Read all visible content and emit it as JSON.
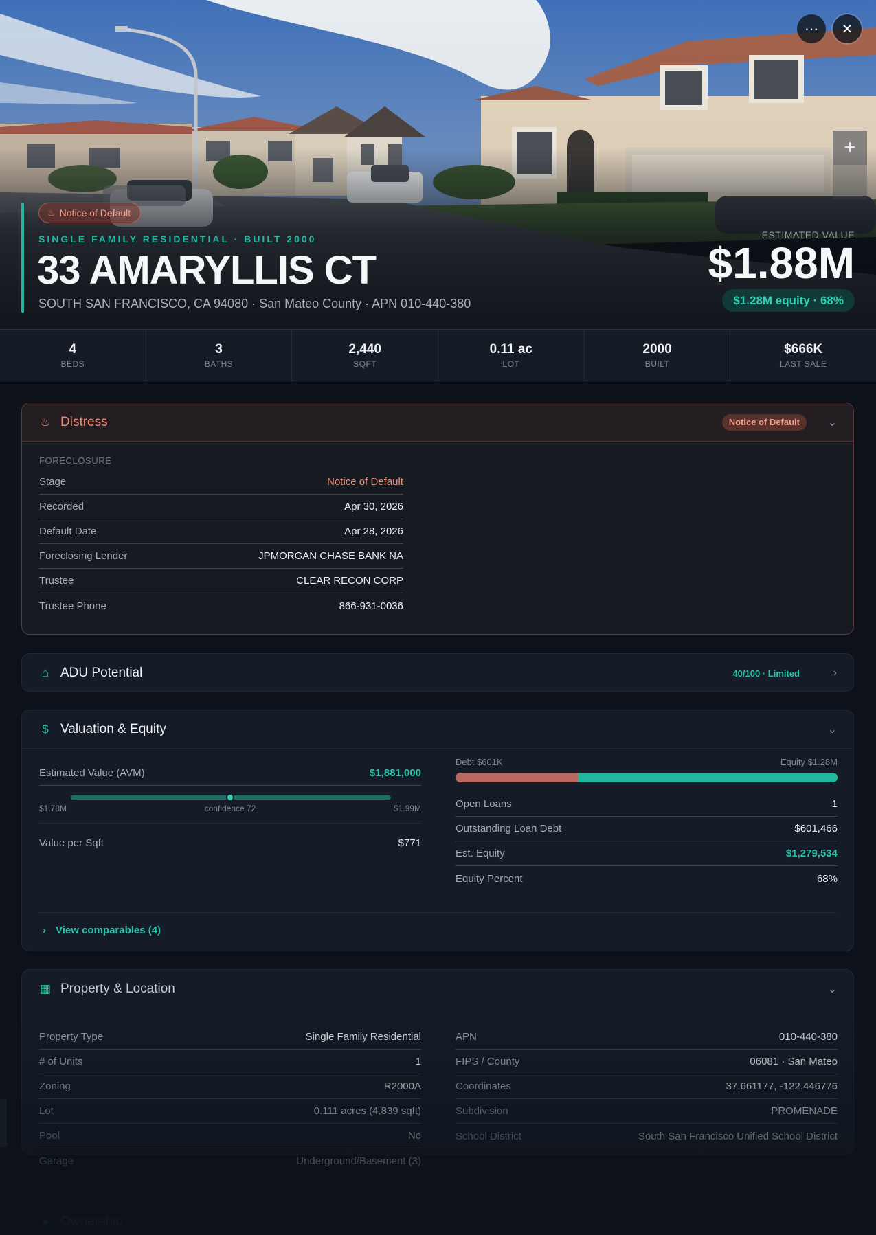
{
  "hero": {
    "badge": "Notice of Default",
    "subtitle": "SINGLE FAMILY RESIDENTIAL · BUILT 2000",
    "title": "33 AMARYLLIS CT",
    "address": "SOUTH SAN FRANCISCO, CA 94080 · San Mateo County · APN 010-440-380",
    "est_label": "ESTIMATED VALUE",
    "est_value": "$1.88M",
    "equity_pill": "$1.28M equity · 68%",
    "more_icon": "⋯",
    "close_icon": "✕",
    "zoom_in_icon": "+"
  },
  "stats": [
    {
      "value": "4",
      "label": "BEDS"
    },
    {
      "value": "3",
      "label": "BATHS"
    },
    {
      "value": "2,440",
      "label": "SQFT"
    },
    {
      "value": "0.11 ac",
      "label": "LOT"
    },
    {
      "value": "2000",
      "label": "BUILT"
    },
    {
      "value": "$666K",
      "label": "LAST SALE"
    }
  ],
  "distress": {
    "title": "Distress",
    "badge": "Notice of Default",
    "section": "FORECLOSURE",
    "rows": [
      {
        "k": "Stage",
        "v": "Notice of Default"
      },
      {
        "k": "Recorded",
        "v": "Apr 30, 2026"
      },
      {
        "k": "Default Date",
        "v": "Apr 28, 2026"
      },
      {
        "k": "Foreclosing Lender",
        "v": "JPMORGAN CHASE BANK NA"
      },
      {
        "k": "Trustee",
        "v": "CLEAR RECON CORP"
      },
      {
        "k": "Trustee Phone",
        "v": "866-931-0036"
      }
    ]
  },
  "adu": {
    "title": "ADU Potential",
    "score": "40/100 · Limited"
  },
  "valuation": {
    "title": "Valuation & Equity",
    "avm_label": "Estimated Value (AVM)",
    "avm_value": "$1,881,000",
    "range_low": "$1.78M",
    "confidence": "confidence 72",
    "range_high": "$1.99M",
    "value_sqft_label": "Value per Sqft",
    "value_sqft": "$771",
    "debt_label": "Debt $601K",
    "equity_label": "Equity $1.28M",
    "debt_fraction": 0.32,
    "rows": [
      {
        "k": "Open Loans",
        "v": "1"
      },
      {
        "k": "Outstanding Loan Debt",
        "v": "$601,466"
      },
      {
        "k": "Est. Equity",
        "v": "$1,279,534"
      },
      {
        "k": "Equity Percent",
        "v": "68%"
      }
    ],
    "comps_link": "View comparables (4)"
  },
  "property": {
    "title": "Property & Location",
    "left": [
      {
        "k": "Property Type",
        "v": "Single Family Residential"
      },
      {
        "k": "# of Units",
        "v": "1"
      },
      {
        "k": "Zoning",
        "v": "R2000A"
      },
      {
        "k": "Lot",
        "v": "0.111 acres (4,839 sqft)"
      },
      {
        "k": "Pool",
        "v": "No"
      },
      {
        "k": "Garage",
        "v": "Underground/Basement (3)"
      }
    ],
    "right": [
      {
        "k": "APN",
        "v": "010-440-380"
      },
      {
        "k": "FIPS / County",
        "v": "06081 · San Mateo"
      },
      {
        "k": "Coordinates",
        "v": "37.661177, -122.446776"
      },
      {
        "k": "Subdivision",
        "v": "PROMENADE"
      },
      {
        "k": "School District",
        "v": "South San Francisco Unified School District"
      }
    ]
  },
  "ownership": {
    "title": "Ownership"
  },
  "colors": {
    "accent": "#1fb9a2",
    "distress": "#ee8a72",
    "debt": "#b8685e",
    "equity": "#22b8a0"
  }
}
